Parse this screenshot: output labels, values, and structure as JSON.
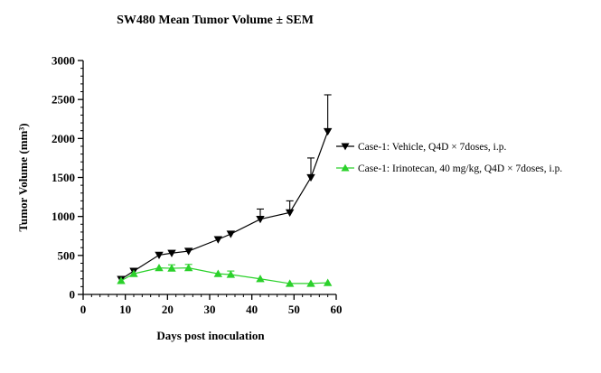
{
  "chart_data": {
    "type": "line",
    "title": "SW480 Mean Tumor Volume ± SEM",
    "xlabel": "Days post inoculation",
    "ylabel": "Tumor Volume (mm³)",
    "xlim": [
      0,
      60
    ],
    "ylim": [
      0,
      3000
    ],
    "x_major_ticks": [
      0,
      10,
      20,
      30,
      40,
      50,
      60
    ],
    "x_minor_step": 2,
    "y_major_ticks": [
      0,
      500,
      1000,
      1500,
      2000,
      2500,
      3000
    ],
    "y_minor_step": 100,
    "grid": false,
    "legend_position": "right",
    "error_bars": "SEM",
    "series": [
      {
        "name": "Case-1: Vehicle, Q4D × 7doses, i.p.",
        "color": "#000000",
        "marker": "triangle-down",
        "x": [
          9,
          12,
          18,
          21,
          25,
          32,
          35,
          42,
          49,
          54,
          58
        ],
        "y": [
          195,
          300,
          505,
          530,
          555,
          705,
          775,
          965,
          1050,
          1500,
          2090
        ],
        "sem": [
          0,
          0,
          0,
          0,
          0,
          0,
          0,
          130,
          150,
          250,
          470
        ]
      },
      {
        "name": "Case-1: Irinotecan, 40 mg/kg, Q4D × 7doses, i.p.",
        "color": "#2bd12b",
        "marker": "triangle-up",
        "x": [
          9,
          12,
          18,
          21,
          25,
          32,
          35,
          42,
          49,
          54,
          58
        ],
        "y": [
          175,
          265,
          340,
          335,
          340,
          265,
          255,
          200,
          140,
          140,
          150
        ],
        "sem": [
          0,
          0,
          0,
          45,
          45,
          0,
          45,
          0,
          0,
          0,
          0
        ]
      }
    ]
  }
}
